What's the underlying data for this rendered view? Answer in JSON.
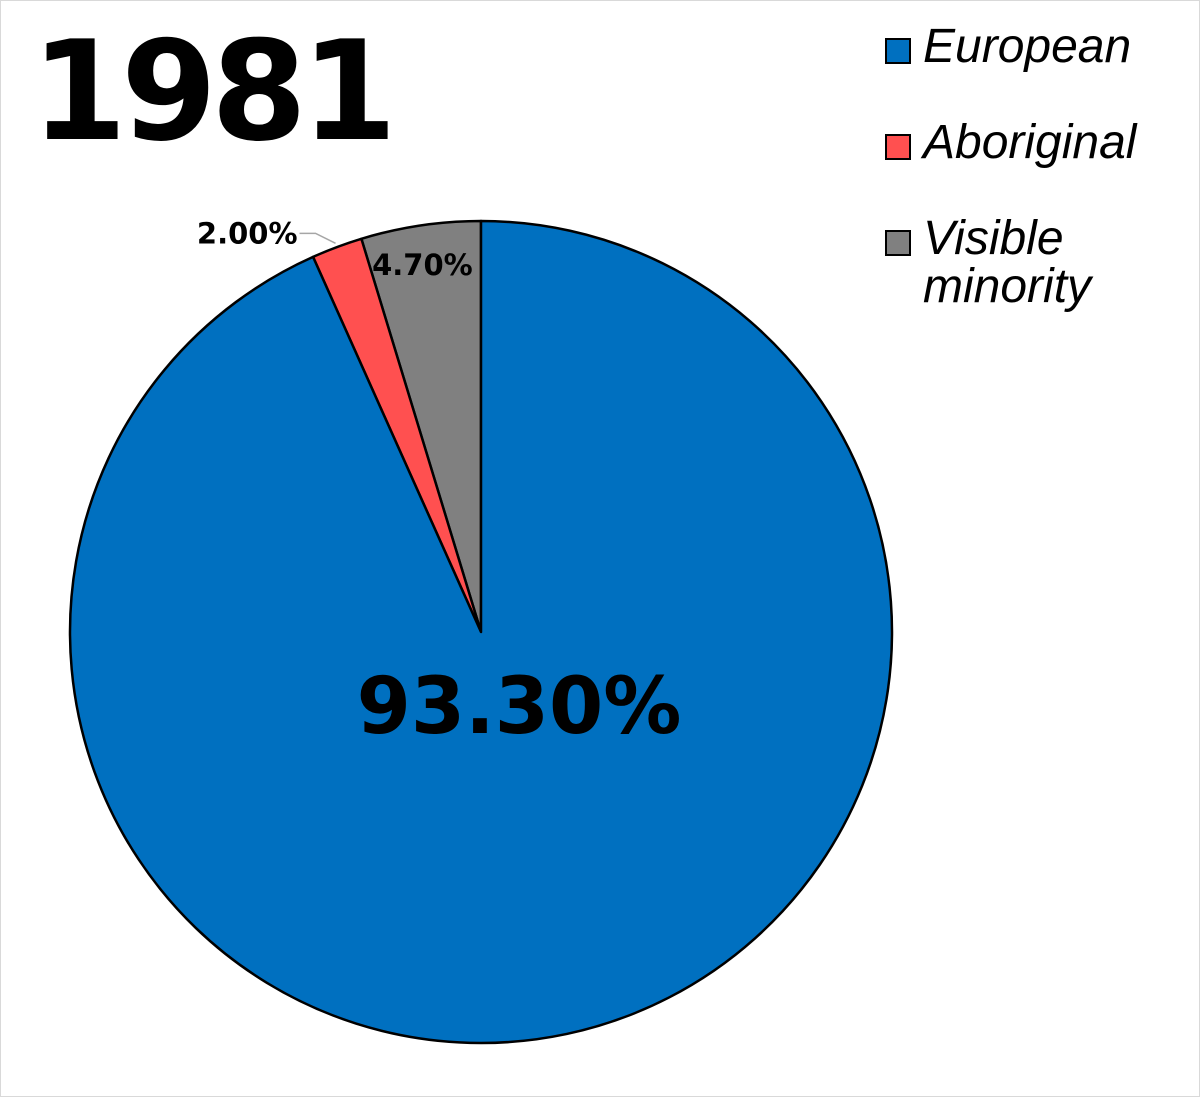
{
  "chart_data": {
    "type": "pie",
    "title": "1981",
    "slices": [
      {
        "label": "European",
        "value": 93.3,
        "display": "93.30%",
        "color": "#0070c0"
      },
      {
        "label": "Aboriginal",
        "value": 2.0,
        "display": "2.00%",
        "color": "#ff5050"
      },
      {
        "label": "Visible minority",
        "value": 4.7,
        "display": "4.70%",
        "color": "#808080"
      }
    ],
    "start": "12 o'clock",
    "direction": "clockwise",
    "legend_position": "top-right"
  },
  "legend": {
    "items": [
      {
        "label": "European",
        "color": "#0070c0"
      },
      {
        "label": "Aboriginal",
        "color": "#ff5050"
      },
      {
        "label": "Visible minority",
        "color": "#808080"
      }
    ]
  }
}
